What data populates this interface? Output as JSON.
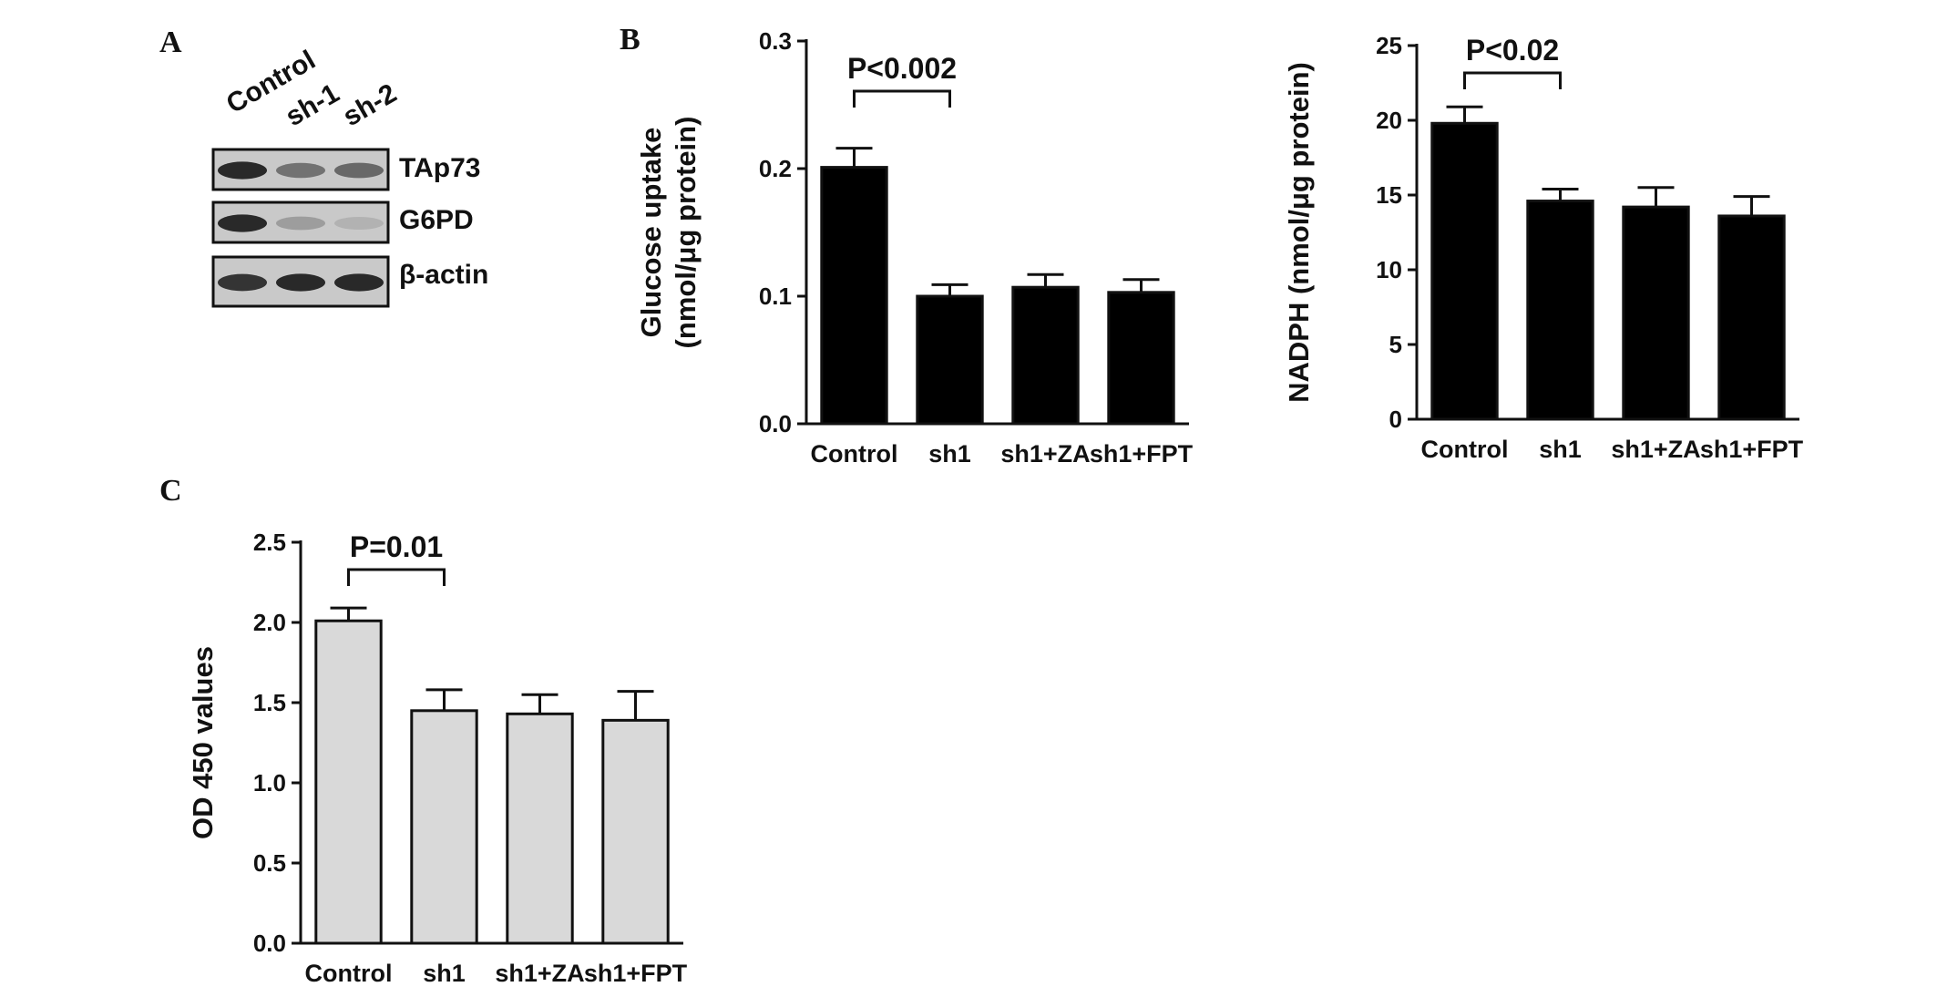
{
  "panels": {
    "a": "A",
    "b": "B",
    "c": "C"
  },
  "blot": {
    "lanes": [
      "Control",
      "sh-1",
      "sh-2"
    ],
    "bands": [
      {
        "label": "TAp73",
        "intensity": [
          0.9,
          0.55,
          0.6
        ]
      },
      {
        "label": "G6PD",
        "intensity": [
          0.9,
          0.35,
          0.25
        ]
      },
      {
        "label": "β-actin",
        "intensity": [
          0.85,
          0.9,
          0.9
        ]
      }
    ]
  },
  "chart_data": [
    {
      "type": "bar",
      "title": "",
      "ylabel_line1": "Glucose uptake",
      "ylabel_line2": "(nmol/μg protein)",
      "xlabel": "",
      "categories": [
        "Control",
        "sh1",
        "sh1+ZA",
        "sh1+FPT"
      ],
      "values": [
        0.201,
        0.1,
        0.107,
        0.103
      ],
      "errors": [
        0.015,
        0.009,
        0.01,
        0.01
      ],
      "ylim": [
        0,
        0.3
      ],
      "yticks": [
        "0.0",
        "0.1",
        "0.2",
        "0.3"
      ],
      "ytick_values": [
        0,
        0.1,
        0.2,
        0.3
      ],
      "bar_color": "#000000",
      "significance": {
        "text": "P<0.002",
        "from": 0,
        "to": 1
      }
    },
    {
      "type": "bar",
      "title": "",
      "ylabel": "NADPH (nmol/μg protein)",
      "xlabel": "",
      "categories": [
        "Control",
        "sh1",
        "sh1+ZA",
        "sh1+FPT"
      ],
      "values": [
        19.8,
        14.6,
        14.2,
        13.6
      ],
      "errors": [
        1.1,
        0.8,
        1.3,
        1.3
      ],
      "ylim": [
        0,
        25
      ],
      "yticks": [
        "0",
        "5",
        "10",
        "15",
        "20",
        "25"
      ],
      "ytick_values": [
        0,
        5,
        10,
        15,
        20,
        25
      ],
      "bar_color": "#000000",
      "significance": {
        "text": "P<0.02",
        "from": 0,
        "to": 1
      }
    },
    {
      "type": "bar",
      "title": "",
      "ylabel": "OD 450 values",
      "xlabel": "",
      "categories": [
        "Control",
        "sh1",
        "sh1+ZA",
        "sh1+FPT"
      ],
      "values": [
        2.01,
        1.45,
        1.43,
        1.39
      ],
      "errors": [
        0.08,
        0.13,
        0.12,
        0.18
      ],
      "ylim": [
        0,
        2.5
      ],
      "yticks": [
        "0.0",
        "0.5",
        "1.0",
        "1.5",
        "2.0",
        "2.5"
      ],
      "ytick_values": [
        0,
        0.5,
        1.0,
        1.5,
        2.0,
        2.5
      ],
      "bar_color": "#d9d9d9",
      "significance": {
        "text": "P=0.01",
        "from": 0,
        "to": 1
      }
    }
  ]
}
